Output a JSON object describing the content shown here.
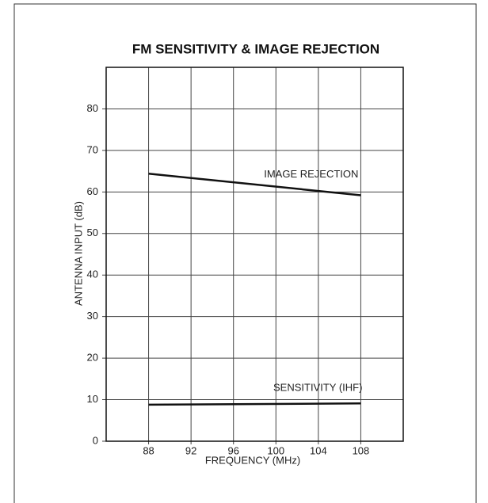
{
  "chart_data": {
    "type": "line",
    "title": "FM SENSITIVITY & IMAGE REJECTION",
    "x_label": "FREQUENCY (MHz)",
    "y_label": "ANTENNA INPUT (dB)",
    "x": [
      88,
      108
    ],
    "series": [
      {
        "name": "IMAGE REJECTION",
        "color": "#111111",
        "values": [
          64.4,
          59.2
        ]
      },
      {
        "name": "SENSITIVITY (IHF)",
        "color": "#111111",
        "values": [
          8.8,
          9.1
        ]
      }
    ],
    "xlim": [
      84,
      112
    ],
    "xticks": [
      88,
      92,
      96,
      100,
      104,
      108
    ],
    "ylim": [
      0,
      90
    ],
    "yticks": [
      0,
      10,
      20,
      30,
      40,
      50,
      60,
      70,
      80
    ],
    "grid": true
  }
}
